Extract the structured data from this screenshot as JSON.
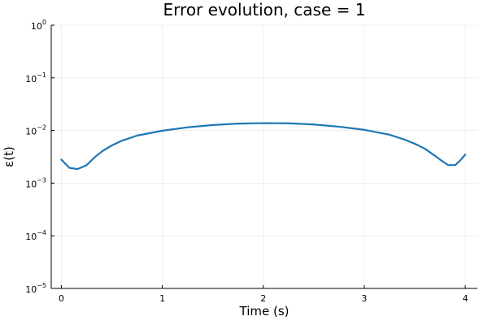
{
  "chart_data": {
    "type": "line",
    "title": "Error evolution, case = 1",
    "xlabel": "Time (s)",
    "ylabel": "ε(t)",
    "xlim": [
      -0.1,
      4.12
    ],
    "ylim": [
      1e-05,
      1
    ],
    "yscale": "log",
    "grid": true,
    "legend": "none",
    "x_ticks": [
      0,
      1,
      2,
      3,
      4
    ],
    "x_tick_labels": [
      "0",
      "1",
      "2",
      "3",
      "4"
    ],
    "y_ticks": [
      1e-05,
      0.0001,
      0.001,
      0.01,
      0.1,
      1
    ],
    "y_tick_labels": [
      {
        "base": "10",
        "exp": "−5"
      },
      {
        "base": "10",
        "exp": "−4"
      },
      {
        "base": "10",
        "exp": "−3"
      },
      {
        "base": "10",
        "exp": "−2"
      },
      {
        "base": "10",
        "exp": "−1"
      },
      {
        "base": "10",
        "exp": "0"
      }
    ],
    "series": [
      {
        "color": "#1f77b4",
        "x": [
          0,
          0.08,
          0.16,
          0.25,
          0.33,
          0.41,
          0.5,
          0.6,
          0.75,
          1.0,
          1.25,
          1.5,
          1.75,
          2.0,
          2.25,
          2.5,
          2.75,
          3.0,
          3.25,
          3.4,
          3.5,
          3.6,
          3.7,
          3.75,
          3.8,
          3.83,
          3.9,
          3.95,
          4.0
        ],
        "y": [
          0.0028,
          0.00195,
          0.00185,
          0.0022,
          0.0031,
          0.0041,
          0.0052,
          0.0064,
          0.008,
          0.0099,
          0.0115,
          0.0127,
          0.0135,
          0.0138,
          0.0137,
          0.013,
          0.0118,
          0.0103,
          0.0083,
          0.0067,
          0.0056,
          0.0045,
          0.0033,
          0.0028,
          0.0024,
          0.0022,
          0.0022,
          0.0027,
          0.0035
        ]
      }
    ]
  }
}
